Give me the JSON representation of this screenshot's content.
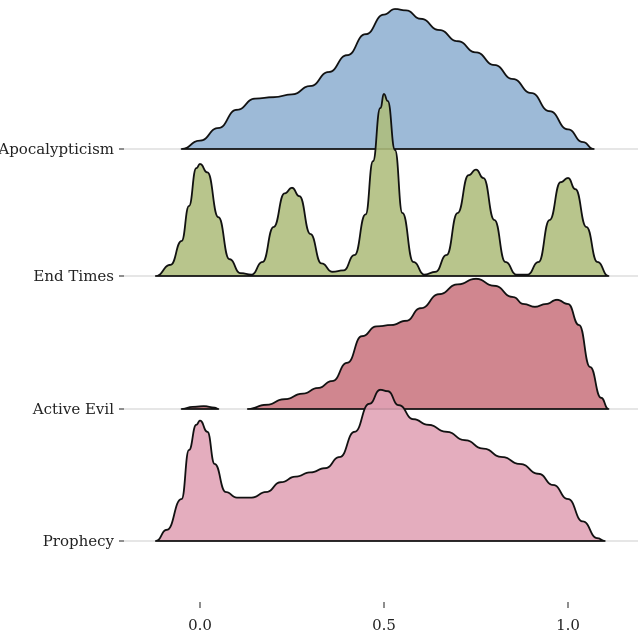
{
  "chart_data": {
    "type": "ridgeline",
    "title": "",
    "xlabel": "",
    "ylabel": "",
    "xlim": [
      -0.2,
      1.18
    ],
    "x_ticks": [
      {
        "value": 0.0,
        "label": "0.0"
      },
      {
        "value": 0.5,
        "label": "0.5"
      },
      {
        "value": 1.0,
        "label": "1.0"
      }
    ],
    "series": [
      {
        "name": "Apocalypticism",
        "color": "#8fb0d2",
        "segments": [
          [
            [
              -0.05,
              0
            ],
            [
              0.0,
              0.06
            ],
            [
              0.05,
              0.15
            ],
            [
              0.1,
              0.28
            ],
            [
              0.15,
              0.36
            ],
            [
              0.2,
              0.37
            ],
            [
              0.25,
              0.39
            ],
            [
              0.3,
              0.45
            ],
            [
              0.35,
              0.55
            ],
            [
              0.4,
              0.67
            ],
            [
              0.45,
              0.82
            ],
            [
              0.5,
              0.96
            ],
            [
              0.53,
              1.0
            ],
            [
              0.56,
              0.99
            ],
            [
              0.6,
              0.93
            ],
            [
              0.65,
              0.85
            ],
            [
              0.7,
              0.77
            ],
            [
              0.75,
              0.69
            ],
            [
              0.8,
              0.6
            ],
            [
              0.85,
              0.5
            ],
            [
              0.9,
              0.4
            ],
            [
              0.95,
              0.27
            ],
            [
              1.0,
              0.14
            ],
            [
              1.04,
              0.05
            ],
            [
              1.07,
              0
            ]
          ]
        ]
      },
      {
        "name": "End Times",
        "color": "#aebd7c",
        "segments": [
          [
            [
              -0.12,
              0
            ],
            [
              -0.08,
              0.08
            ],
            [
              -0.05,
              0.25
            ],
            [
              -0.03,
              0.5
            ],
            [
              -0.01,
              0.77
            ],
            [
              0.0,
              0.8
            ],
            [
              0.02,
              0.74
            ],
            [
              0.05,
              0.42
            ],
            [
              0.08,
              0.12
            ],
            [
              0.11,
              0.02
            ],
            [
              0.14,
              0.01
            ],
            [
              0.17,
              0.1
            ],
            [
              0.2,
              0.35
            ],
            [
              0.23,
              0.59
            ],
            [
              0.25,
              0.63
            ],
            [
              0.27,
              0.57
            ],
            [
              0.3,
              0.3
            ],
            [
              0.33,
              0.09
            ],
            [
              0.36,
              0.03
            ],
            [
              0.39,
              0.04
            ],
            [
              0.42,
              0.15
            ],
            [
              0.45,
              0.44
            ],
            [
              0.47,
              0.82
            ],
            [
              0.49,
              1.2
            ],
            [
              0.5,
              1.3
            ],
            [
              0.51,
              1.25
            ],
            [
              0.53,
              0.9
            ],
            [
              0.55,
              0.45
            ],
            [
              0.58,
              0.1
            ],
            [
              0.61,
              0.01
            ],
            [
              0.64,
              0.03
            ],
            [
              0.67,
              0.15
            ],
            [
              0.7,
              0.45
            ],
            [
              0.73,
              0.72
            ],
            [
              0.75,
              0.76
            ],
            [
              0.77,
              0.7
            ],
            [
              0.8,
              0.4
            ],
            [
              0.83,
              0.1
            ],
            [
              0.86,
              0.01
            ],
            [
              0.89,
              0.01
            ],
            [
              0.92,
              0.1
            ],
            [
              0.95,
              0.4
            ],
            [
              0.98,
              0.67
            ],
            [
              1.0,
              0.7
            ],
            [
              1.02,
              0.62
            ],
            [
              1.05,
              0.35
            ],
            [
              1.08,
              0.1
            ],
            [
              1.11,
              0
            ]
          ]
        ]
      },
      {
        "name": "Active Evil",
        "color": "#c9757f",
        "segments": [
          [
            [
              -0.05,
              0
            ],
            [
              -0.02,
              0.015
            ],
            [
              0.01,
              0.02
            ],
            [
              0.04,
              0.01
            ],
            [
              0.05,
              0
            ]
          ],
          [
            [
              0.13,
              0
            ],
            [
              0.18,
              0.03
            ],
            [
              0.23,
              0.07
            ],
            [
              0.28,
              0.11
            ],
            [
              0.32,
              0.15
            ],
            [
              0.36,
              0.2
            ],
            [
              0.4,
              0.33
            ],
            [
              0.44,
              0.52
            ],
            [
              0.48,
              0.59
            ],
            [
              0.52,
              0.6
            ],
            [
              0.56,
              0.63
            ],
            [
              0.6,
              0.72
            ],
            [
              0.65,
              0.82
            ],
            [
              0.7,
              0.89
            ],
            [
              0.75,
              0.93
            ],
            [
              0.8,
              0.88
            ],
            [
              0.85,
              0.8
            ],
            [
              0.88,
              0.75
            ],
            [
              0.91,
              0.73
            ],
            [
              0.94,
              0.75
            ],
            [
              0.97,
              0.78
            ],
            [
              1.0,
              0.75
            ],
            [
              1.03,
              0.6
            ],
            [
              1.06,
              0.3
            ],
            [
              1.09,
              0.08
            ],
            [
              1.11,
              0
            ]
          ]
        ]
      },
      {
        "name": "Prophecy",
        "color": "#e0a2b5",
        "segments": [
          [
            [
              -0.12,
              0
            ],
            [
              -0.09,
              0.08
            ],
            [
              -0.05,
              0.3
            ],
            [
              -0.03,
              0.65
            ],
            [
              -0.01,
              0.83
            ],
            [
              0.0,
              0.86
            ],
            [
              0.02,
              0.78
            ],
            [
              0.04,
              0.55
            ],
            [
              0.07,
              0.35
            ],
            [
              0.1,
              0.31
            ],
            [
              0.14,
              0.31
            ],
            [
              0.18,
              0.35
            ],
            [
              0.22,
              0.42
            ],
            [
              0.26,
              0.46
            ],
            [
              0.3,
              0.49
            ],
            [
              0.34,
              0.52
            ],
            [
              0.38,
              0.6
            ],
            [
              0.42,
              0.78
            ],
            [
              0.46,
              0.98
            ],
            [
              0.49,
              1.08
            ],
            [
              0.51,
              1.07
            ],
            [
              0.54,
              0.97
            ],
            [
              0.58,
              0.87
            ],
            [
              0.62,
              0.83
            ],
            [
              0.67,
              0.78
            ],
            [
              0.72,
              0.72
            ],
            [
              0.77,
              0.66
            ],
            [
              0.82,
              0.6
            ],
            [
              0.87,
              0.55
            ],
            [
              0.92,
              0.48
            ],
            [
              0.96,
              0.4
            ],
            [
              1.0,
              0.3
            ],
            [
              1.04,
              0.14
            ],
            [
              1.08,
              0.02
            ],
            [
              1.1,
              0
            ]
          ]
        ]
      }
    ]
  }
}
